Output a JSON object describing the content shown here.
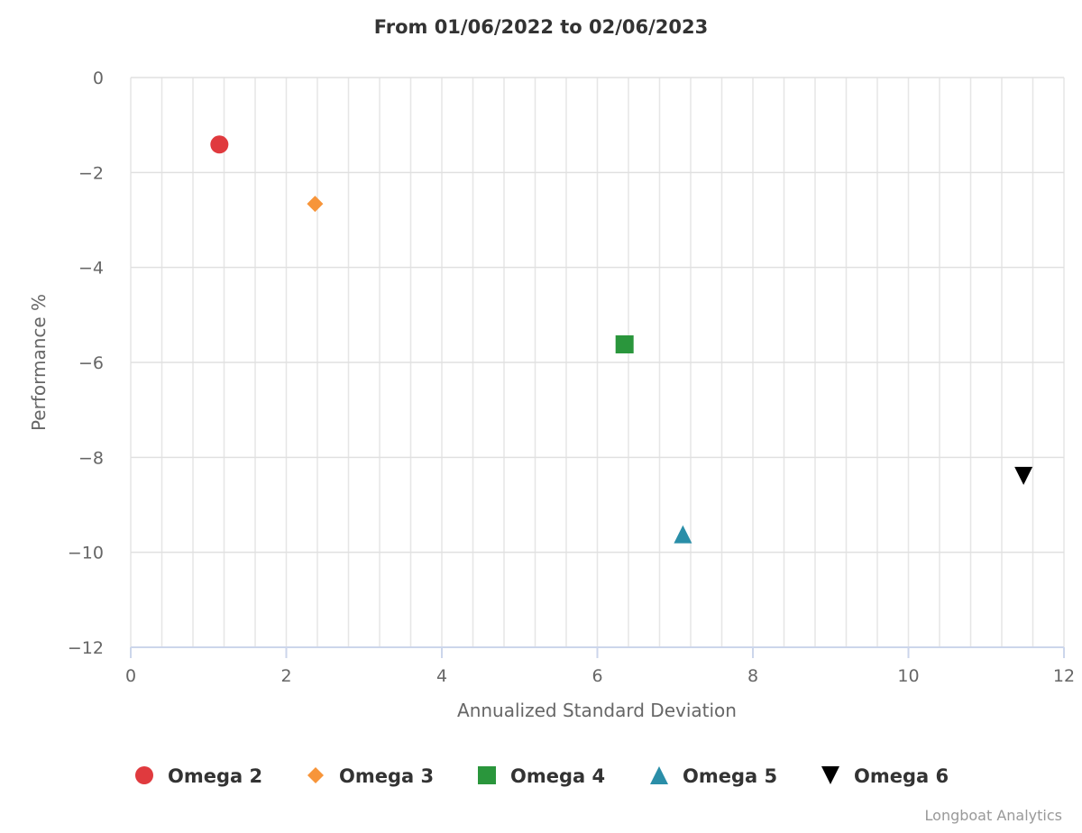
{
  "chart_data": {
    "type": "scatter",
    "title": "From 01/06/2022 to 02/06/2023",
    "xlabel": "Annualized Standard Deviation",
    "ylabel": "Performance %",
    "xlim": [
      0,
      12
    ],
    "ylim": [
      -12,
      0
    ],
    "xticks": [
      0,
      2,
      4,
      6,
      8,
      10,
      12
    ],
    "yticks": [
      0,
      -2,
      -4,
      -6,
      -8,
      -10,
      -12
    ],
    "x_minor_grid_step": 0.4,
    "grid": true,
    "legend_position": "bottom",
    "series": [
      {
        "name": "Omega 2",
        "marker": "circle",
        "color": "#e03a3e",
        "x": 1.14,
        "y": -1.41
      },
      {
        "name": "Omega 3",
        "marker": "diamond",
        "color": "#f7953a",
        "x": 2.37,
        "y": -2.66
      },
      {
        "name": "Omega 4",
        "marker": "square",
        "color": "#2a963c",
        "x": 6.35,
        "y": -5.62
      },
      {
        "name": "Omega 5",
        "marker": "triangle",
        "color": "#2a8ea8",
        "x": 7.1,
        "y": -9.62
      },
      {
        "name": "Omega 6",
        "marker": "triangle-down",
        "color": "#000000",
        "x": 11.48,
        "y": -8.39
      }
    ]
  },
  "credits": "Longboat Analytics"
}
